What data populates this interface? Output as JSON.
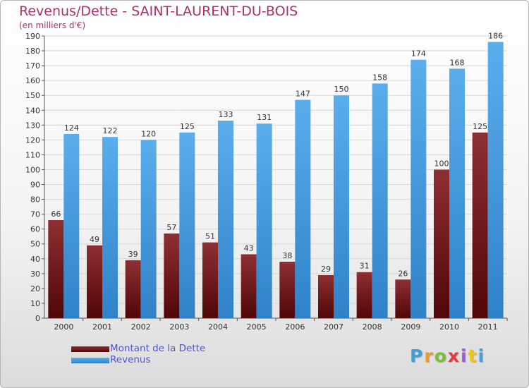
{
  "chart_data": {
    "type": "bar",
    "title": "Revenus/Dette - SAINT-LAURENT-DU-BOIS",
    "subtitle": "(en milliers d'€)",
    "xlabel": "",
    "ylabel": "",
    "categories": [
      "2000",
      "2001",
      "2002",
      "2003",
      "2004",
      "2005",
      "2006",
      "2007",
      "2008",
      "2009",
      "2010",
      "2011"
    ],
    "series": [
      {
        "name": "Montant de la Dette",
        "values": [
          66,
          49,
          39,
          57,
          51,
          43,
          38,
          29,
          31,
          26,
          100,
          125
        ],
        "color": "#7a1c22"
      },
      {
        "name": "Revenus",
        "values": [
          124,
          122,
          120,
          125,
          133,
          131,
          147,
          150,
          158,
          174,
          168,
          186
        ],
        "color": "#4da3e8"
      }
    ],
    "ylim": [
      0,
      190
    ],
    "yticks": [
      0,
      10,
      20,
      30,
      40,
      50,
      60,
      70,
      80,
      90,
      100,
      110,
      120,
      130,
      140,
      150,
      160,
      170,
      180,
      190
    ],
    "grid": true,
    "legend_position": "bottom-left"
  },
  "logo": {
    "letters": [
      "P",
      "r",
      "o",
      "x",
      "i",
      "t",
      "i"
    ],
    "colors": [
      "#3da0e0",
      "#f29a1f",
      "#7bbf3a",
      "#e23c3c",
      "#9c5bd1",
      "#f2c21f",
      "#3da0e0"
    ]
  }
}
